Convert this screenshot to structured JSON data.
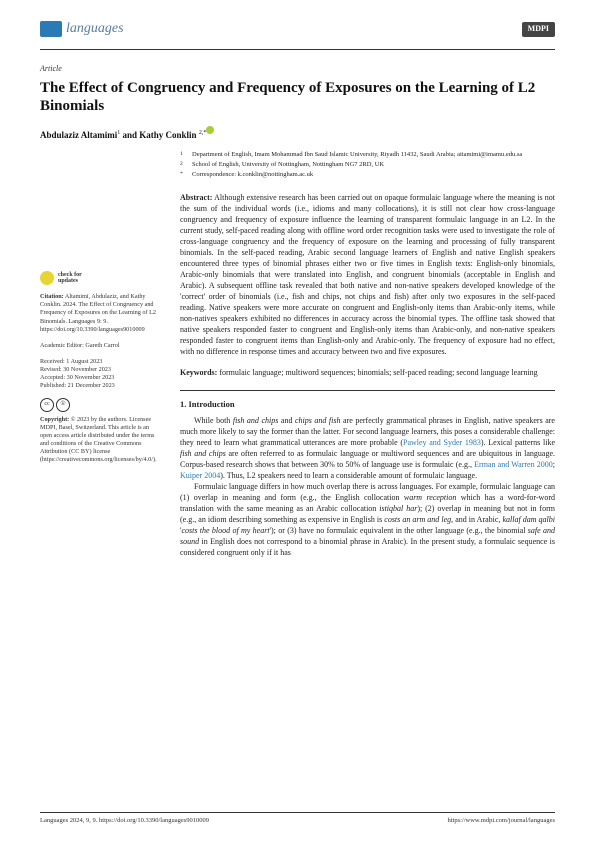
{
  "header": {
    "journal_name": "languages",
    "publisher_badge": "MDPI"
  },
  "article_type": "Article",
  "title": "The Effect of Congruency and Frequency of Exposures on the Learning of L2 Binomials",
  "authors": {
    "a1_name": "Abdulaziz Altamimi",
    "a1_aff": "1",
    "a2_name": "Kathy Conklin",
    "a2_aff": "2,*",
    "joiner": " and "
  },
  "affiliations": {
    "a1_num": "1",
    "a1_text": "Department of English, Imam Mohammad Ibn Saud Islamic University, Riyadh 11432, Saudi Arabia; aitamimi@imamu.edu.sa",
    "a2_num": "2",
    "a2_text": "School of English, University of Nottingham, Nottingham NG7 2RD, UK",
    "corr_sym": "*",
    "corr_text": "Correspondence: k.conklin@nottingham.ac.uk"
  },
  "abstract_label": "Abstract:",
  "abstract_text": " Although extensive research has been carried out on opaque formulaic language where the meaning is not the sum of the individual words (i.e., idioms and many collocations), it is still not clear how cross-language congruency and frequency of exposure influence the learning of transparent formulaic language in an L2. In the current study, self-paced reading along with offline word order recognition tasks were used to investigate the role of cross-language congruency and the frequency of exposure on the learning and processing of fully transparent binomials. In the self-paced reading, Arabic second language learners of English and native English speakers encountered three types of binomial phrases either two or five times in English texts: English-only binomials, Arabic-only binomials that were translated into English, and congruent binomials (acceptable in English and Arabic). A subsequent offline task revealed that both native and non-native speakers developed knowledge of the 'correct' order of binomials (i.e., fish and chips, not chips and fish) after only two exposures in the self-paced reading. Native speakers were more accurate on congruent and English-only items than Arabic-only items, while non-natives speakers exhibited no differences in accuracy across the binomial types. The offline task showed that native speakers responded faster to congruent and English-only items than Arabic-only, and non-native speakers responded faster to congruent items than English-only and Arabic-only. The frequency of exposure had no effect, with no difference in response times and accuracy between two and five exposures.",
  "keywords_label": "Keywords:",
  "keywords_text": " formulaic language; multiword sequences; binomials; self-paced reading; second language learning",
  "section1_heading": "1. Introduction",
  "intro_p1_a": "While both ",
  "intro_p1_i1": "fish and chips",
  "intro_p1_b": " and ",
  "intro_p1_i2": "chips and fish",
  "intro_p1_c": " are perfectly grammatical phrases in English, native speakers are much more likely to say the former than the latter. For second language learners, this poses a considerable challenge: they need to learn what grammatical utterances are more probable (",
  "intro_p1_ref1": "Pawley and Syder 1983",
  "intro_p1_d": "). Lexical patterns like ",
  "intro_p1_i3": "fish and chips",
  "intro_p1_e": " are often referred to as formulaic language or multiword sequences and are ubiquitous in language. Corpus-based research shows that between 30% to 50% of language use is formulaic (e.g., ",
  "intro_p1_ref2": "Erman and Warren 2000",
  "intro_p1_f": "; ",
  "intro_p1_ref3": "Kuiper 2004",
  "intro_p1_g": "). Thus, L2 speakers need to learn a considerable amount of formulaic language.",
  "intro_p2_a": "Formulaic language differs in how much overlap there is across languages. For example, formulaic language can (1) overlap in meaning and form (e.g., the English collocation ",
  "intro_p2_i1": "warm reception",
  "intro_p2_b": " which has a word-for-word translation with the same meaning as an Arabic collocation ",
  "intro_p2_i2": "istiqbal har",
  "intro_p2_c": "); (2) overlap in meaning but not in form (e.g., an idiom describing something as expensive in English is ",
  "intro_p2_i3": "costs an arm and leg",
  "intro_p2_d": ", and in Arabic, ",
  "intro_p2_i4": "kallaf dam qalbi",
  "intro_p2_e": " '",
  "intro_p2_i5": "costs the blood of my heart",
  "intro_p2_f": "'); or (3) have no formulaic equivalent in the other language (e.g., the binomial ",
  "intro_p2_i6": "safe and sound",
  "intro_p2_g": " in English does not correspond to a binomial phrase in Arabic). In the present study, a formulaic sequence is considered congruent only if it has",
  "sidebar": {
    "check_line1": "check for",
    "check_line2": "updates",
    "citation_label": "Citation:",
    "citation_text": " Altamimi, Abdulaziz, and Kathy Conklin. 2024. The Effect of Congruency and Frequency of Exposures on the Learning of L2 Binomials. Languages 9: 9. https://doi.org/10.3390/languages9010009",
    "editor_label": "Academic Editor:",
    "editor_text": " Gareth Carrol",
    "received": "Received: 1 August 2023",
    "revised": "Revised: 30 November 2023",
    "accepted": "Accepted: 30 November 2023",
    "published": "Published: 21 December 2023",
    "copyright_label": "Copyright:",
    "copyright_text": " © 2023 by the authors. Licensee MDPI, Basel, Switzerland. This article is an open access article distributed under the terms and conditions of the Creative Commons Attribution (CC BY) license (https://creativecommons.org/licenses/by/4.0/)."
  },
  "footer": {
    "left": "Languages 2024, 9, 9. https://doi.org/10.3390/languages9010009",
    "right": "https://www.mdpi.com/journal/languages"
  }
}
